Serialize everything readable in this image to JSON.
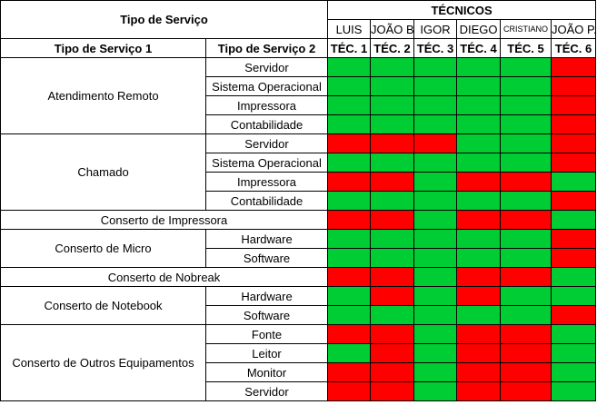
{
  "header": {
    "tipo_servico": "Tipo de Serviço",
    "tecnicos": "TÉCNICOS",
    "col_tipo1": "Tipo de Serviço 1",
    "col_tipo2": "Tipo de Serviço 2"
  },
  "technicians": [
    {
      "name": "LUIS",
      "code": "TÉC. 1"
    },
    {
      "name": "JOÃO B.",
      "code": "TÉC. 2"
    },
    {
      "name": "IGOR",
      "code": "TÉC. 3"
    },
    {
      "name": "DIEGO",
      "code": "TÉC. 4"
    },
    {
      "name": "CRISTIANO",
      "code": "TÉC. 5"
    },
    {
      "name": "JOÃO P.",
      "code": "TÉC. 6"
    }
  ],
  "status_colors": {
    "ok": "#00cc33",
    "no": "#ff0000"
  },
  "groups": [
    {
      "tipo1": "Atendimento Remoto",
      "rows": [
        {
          "tipo2": "Servidor",
          "status": [
            1,
            1,
            1,
            1,
            1,
            0
          ]
        },
        {
          "tipo2": "Sistema Operacional",
          "status": [
            1,
            1,
            1,
            1,
            1,
            0
          ]
        },
        {
          "tipo2": "Impressora",
          "status": [
            1,
            1,
            1,
            1,
            1,
            0
          ]
        },
        {
          "tipo2": "Contabilidade",
          "status": [
            1,
            1,
            1,
            1,
            1,
            0
          ]
        }
      ]
    },
    {
      "tipo1": "Chamado",
      "rows": [
        {
          "tipo2": "Servidor",
          "status": [
            0,
            0,
            0,
            1,
            1,
            0
          ]
        },
        {
          "tipo2": "Sistema Operacional",
          "status": [
            1,
            1,
            1,
            1,
            1,
            0
          ]
        },
        {
          "tipo2": "Impressora",
          "status": [
            0,
            0,
            1,
            0,
            0,
            1
          ]
        },
        {
          "tipo2": "Contabilidade",
          "status": [
            1,
            1,
            1,
            1,
            1,
            0
          ]
        }
      ]
    },
    {
      "tipo1": "Conserto de Impressora",
      "rows": [
        {
          "tipo2": null,
          "status": [
            0,
            0,
            1,
            0,
            0,
            1
          ]
        }
      ]
    },
    {
      "tipo1": "Conserto de Micro",
      "rows": [
        {
          "tipo2": "Hardware",
          "status": [
            1,
            1,
            1,
            1,
            1,
            0
          ]
        },
        {
          "tipo2": "Software",
          "status": [
            1,
            1,
            1,
            1,
            1,
            0
          ]
        }
      ]
    },
    {
      "tipo1": "Conserto de Nobreak",
      "rows": [
        {
          "tipo2": null,
          "status": [
            0,
            0,
            1,
            0,
            0,
            1
          ]
        }
      ]
    },
    {
      "tipo1": "Conserto de Notebook",
      "rows": [
        {
          "tipo2": "Hardware",
          "status": [
            1,
            0,
            1,
            0,
            1,
            1
          ]
        },
        {
          "tipo2": "Software",
          "status": [
            1,
            1,
            1,
            1,
            1,
            0
          ]
        }
      ]
    },
    {
      "tipo1": "Conserto de Outros Equipamentos",
      "rows": [
        {
          "tipo2": "Fonte",
          "status": [
            0,
            0,
            1,
            0,
            0,
            1
          ]
        },
        {
          "tipo2": "Leitor",
          "status": [
            1,
            0,
            1,
            0,
            0,
            1
          ]
        },
        {
          "tipo2": "Monitor",
          "status": [
            0,
            0,
            1,
            0,
            0,
            1
          ]
        },
        {
          "tipo2": "Servidor",
          "status": [
            0,
            0,
            1,
            0,
            0,
            1
          ]
        }
      ]
    }
  ]
}
